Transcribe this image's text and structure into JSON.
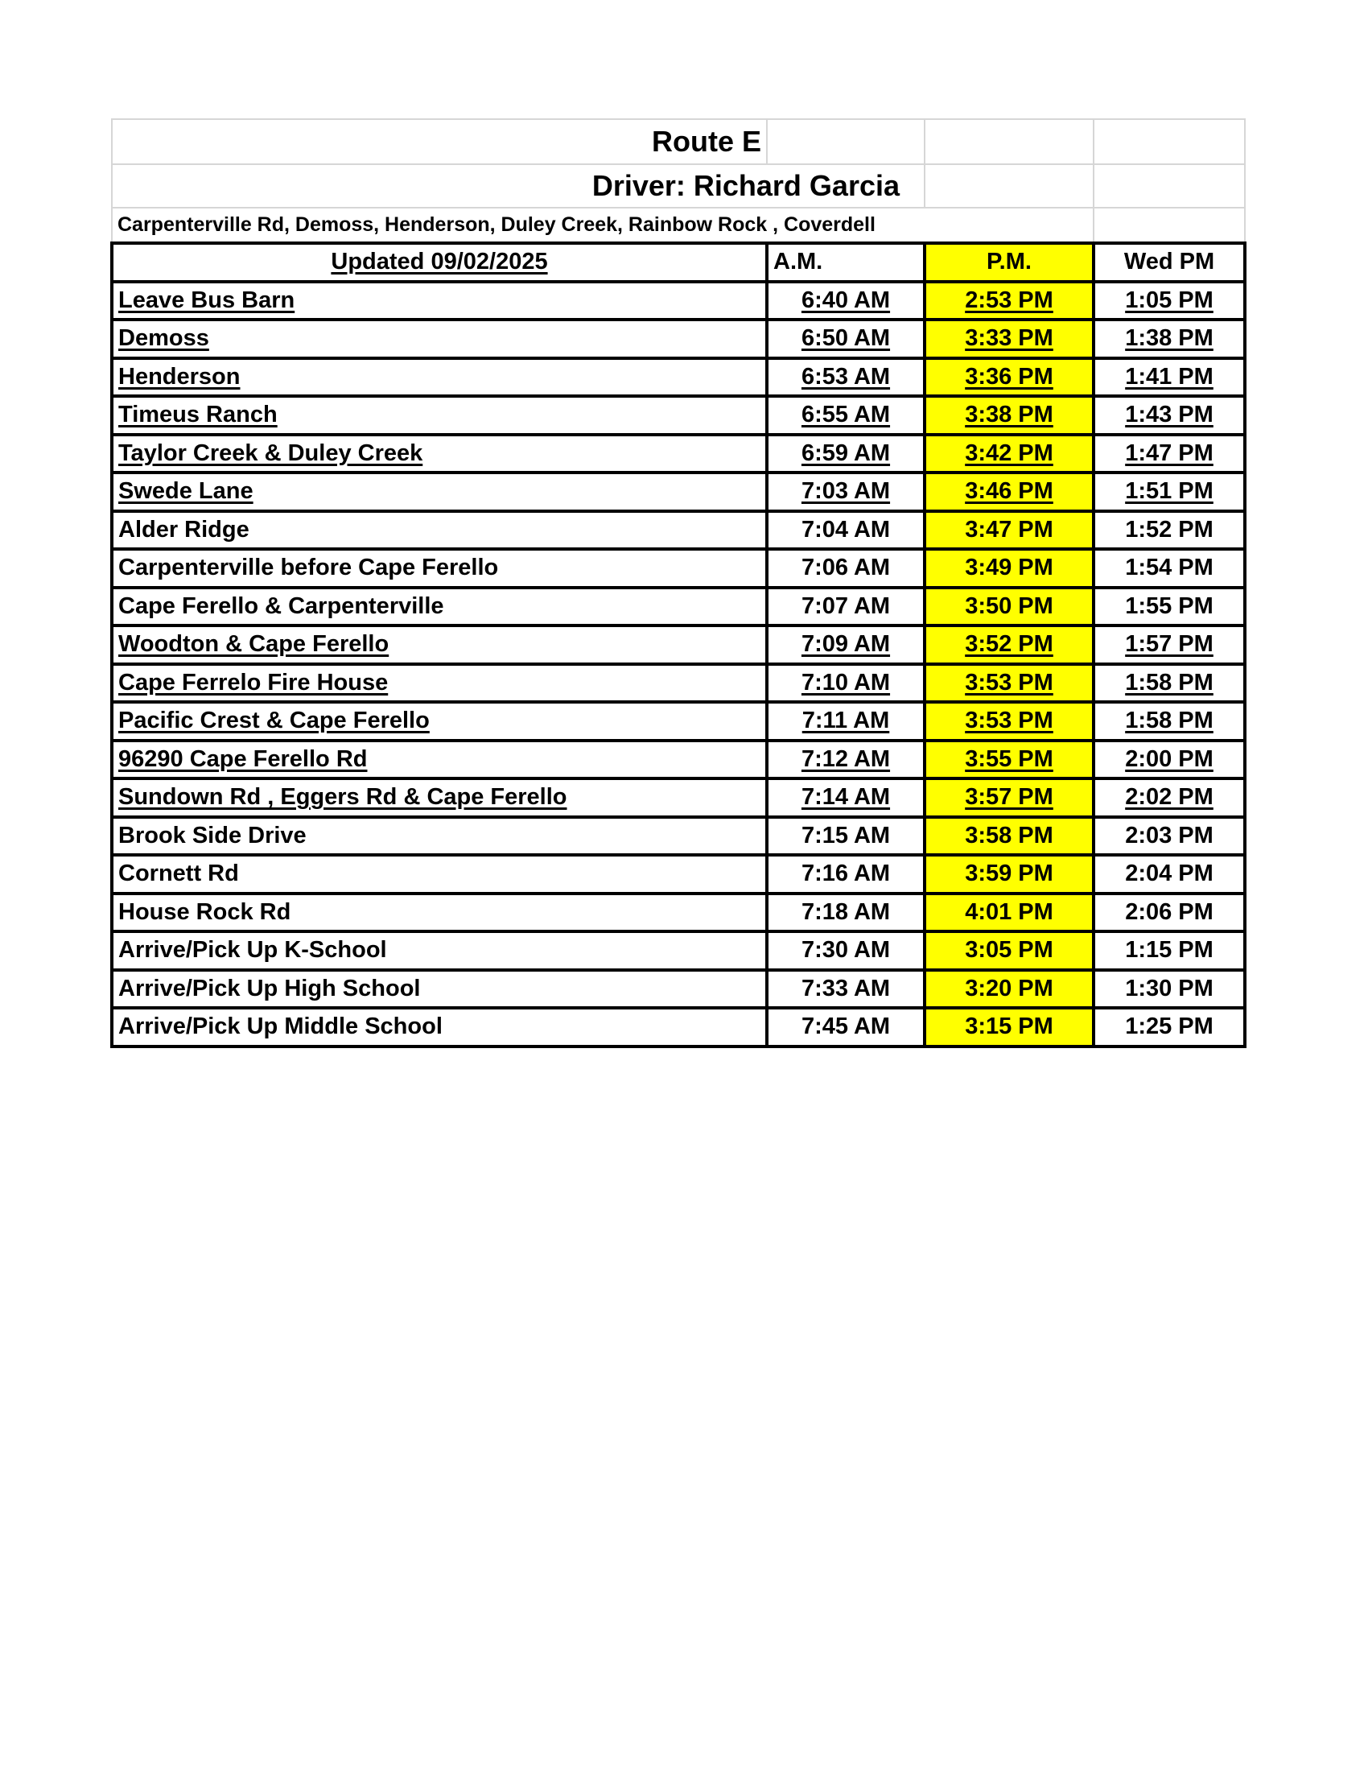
{
  "route_title": "Route E",
  "driver": "Driver: Richard Garcia",
  "areas": "Carpenterville Rd, Demoss, Henderson, Duley Creek, Rainbow Rock , Coverdell",
  "headers": {
    "updated": "Updated 09/02/2025",
    "am": "A.M.",
    "pm": "P.M.",
    "wed_pm": "Wed PM"
  },
  "highlight_color": "#ffff00",
  "stops": [
    {
      "name": "Leave Bus Barn",
      "am": "6:40 AM",
      "pm": "2:53 PM",
      "wed": "1:05 PM",
      "underlined": true
    },
    {
      "name": "Demoss",
      "am": "6:50 AM",
      "pm": "3:33 PM",
      "wed": "1:38 PM",
      "underlined": true
    },
    {
      "name": "Henderson",
      "am": "6:53 AM",
      "pm": "3:36 PM",
      "wed": "1:41 PM",
      "underlined": true
    },
    {
      "name": "Timeus Ranch",
      "am": "6:55 AM",
      "pm": "3:38 PM",
      "wed": "1:43 PM",
      "underlined": true
    },
    {
      "name": "Taylor Creek & Duley Creek",
      "am": "6:59 AM",
      "pm": "3:42 PM",
      "wed": "1:47 PM",
      "underlined": true
    },
    {
      "name": "Swede Lane",
      "am": "7:03 AM",
      "pm": "3:46 PM",
      "wed": "1:51 PM",
      "underlined": true
    },
    {
      "name": "Alder Ridge",
      "am": "7:04 AM",
      "pm": "3:47 PM",
      "wed": "1:52 PM",
      "underlined": false
    },
    {
      "name": "Carpenterville before Cape Ferello",
      "am": "7:06 AM",
      "pm": "3:49 PM",
      "wed": "1:54 PM",
      "underlined": false
    },
    {
      "name": "Cape Ferello & Carpenterville",
      "am": "7:07 AM",
      "pm": "3:50 PM",
      "wed": "1:55 PM",
      "underlined": false
    },
    {
      "name": "Woodton & Cape Ferello",
      "am": "7:09 AM",
      "pm": "3:52 PM",
      "wed": "1:57 PM",
      "underlined": true
    },
    {
      "name": "Cape Ferrelo Fire House ",
      "am": "7:10 AM",
      "pm": "3:53 PM",
      "wed": "1:58 PM",
      "underlined": true
    },
    {
      "name": "Pacific Crest & Cape Ferello",
      "am": "7:11 AM",
      "pm": "3:53 PM",
      "wed": "1:58 PM",
      "underlined": true
    },
    {
      "name": "96290 Cape Ferello Rd",
      "am": "7:12 AM",
      "pm": "3:55 PM",
      "wed": "2:00 PM",
      "underlined": true
    },
    {
      "name": "Sundown Rd , Eggers Rd & Cape Ferello ",
      "am": "7:14 AM",
      "pm": "3:57 PM",
      "wed": "2:02 PM",
      "underlined": true
    },
    {
      "name": "Brook Side Drive",
      "am": "7:15 AM",
      "pm": "3:58 PM",
      "wed": "2:03 PM",
      "underlined": false
    },
    {
      "name": "Cornett Rd",
      "am": "7:16 AM",
      "pm": "3:59 PM",
      "wed": "2:04 PM",
      "underlined": false
    },
    {
      "name": "House Rock Rd",
      "am": "7:18 AM",
      "pm": "4:01 PM",
      "wed": "2:06 PM",
      "underlined": false
    },
    {
      "name": "Arrive/Pick Up K-School",
      "am": "7:30 AM",
      "pm": "3:05 PM",
      "wed": "1:15 PM",
      "underlined": false
    },
    {
      "name": "Arrive/Pick Up High School",
      "am": "7:33 AM",
      "pm": "3:20 PM",
      "wed": "1:30 PM",
      "underlined": false
    },
    {
      "name": "Arrive/Pick Up Middle School",
      "am": "7:45 AM",
      "pm": "3:15 PM",
      "wed": "1:25 PM",
      "underlined": false
    }
  ]
}
